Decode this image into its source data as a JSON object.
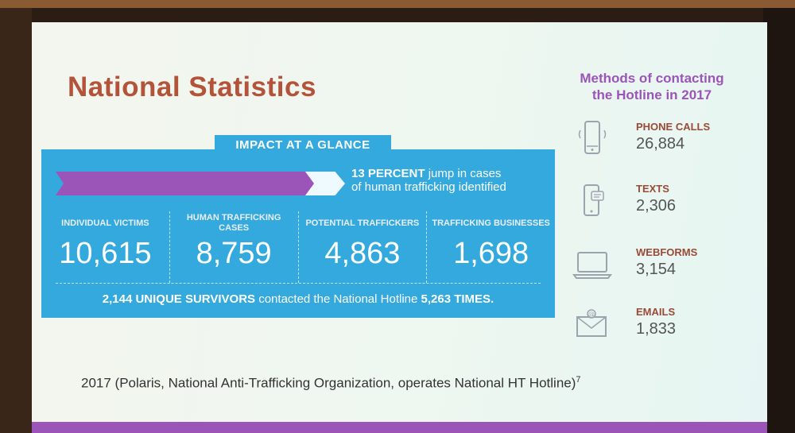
{
  "slide": {
    "title": "National Statistics",
    "impact": {
      "tab_label": "IMPACT AT A GLANCE",
      "jump_bold": "13 PERCENT",
      "jump_rest_line1": " jump in cases",
      "jump_rest_line2": "of human trafficking identified",
      "stats": [
        {
          "label": "INDIVIDUAL VICTIMS",
          "value": "10,615"
        },
        {
          "label": "HUMAN TRAFFICKING CASES",
          "value": "8,759"
        },
        {
          "label": "POTENTIAL TRAFFICKERS",
          "value": "4,863"
        },
        {
          "label": "TRAFFICKING BUSINESSES",
          "value": "1,698"
        }
      ],
      "survivors_bold": "2,144 UNIQUE SURVIVORS",
      "survivors_mid": " contacted the National Hotline ",
      "survivors_times": "5,263 TIMES."
    },
    "methods": {
      "title_line1": "Methods of contacting",
      "title_line2": "the Hotline in 2017",
      "items": [
        {
          "label": "PHONE CALLS",
          "value": "26,884",
          "icon": "phone-icon"
        },
        {
          "label": "TEXTS",
          "value": "2,306",
          "icon": "text-message-icon"
        },
        {
          "label": "WEBFORMS",
          "value": "3,154",
          "icon": "laptop-icon"
        },
        {
          "label": "EMAILS",
          "value": "1,833",
          "icon": "envelope-icon"
        }
      ]
    },
    "footnote": "2017 (Polaris, National Anti-Trafficking Organization, operates National HT Hotline)",
    "footnote_ref": "7"
  },
  "colors": {
    "title": "#b3543a",
    "impact_blue": "#34a9dd",
    "accent_purple": "#9b55b8"
  }
}
